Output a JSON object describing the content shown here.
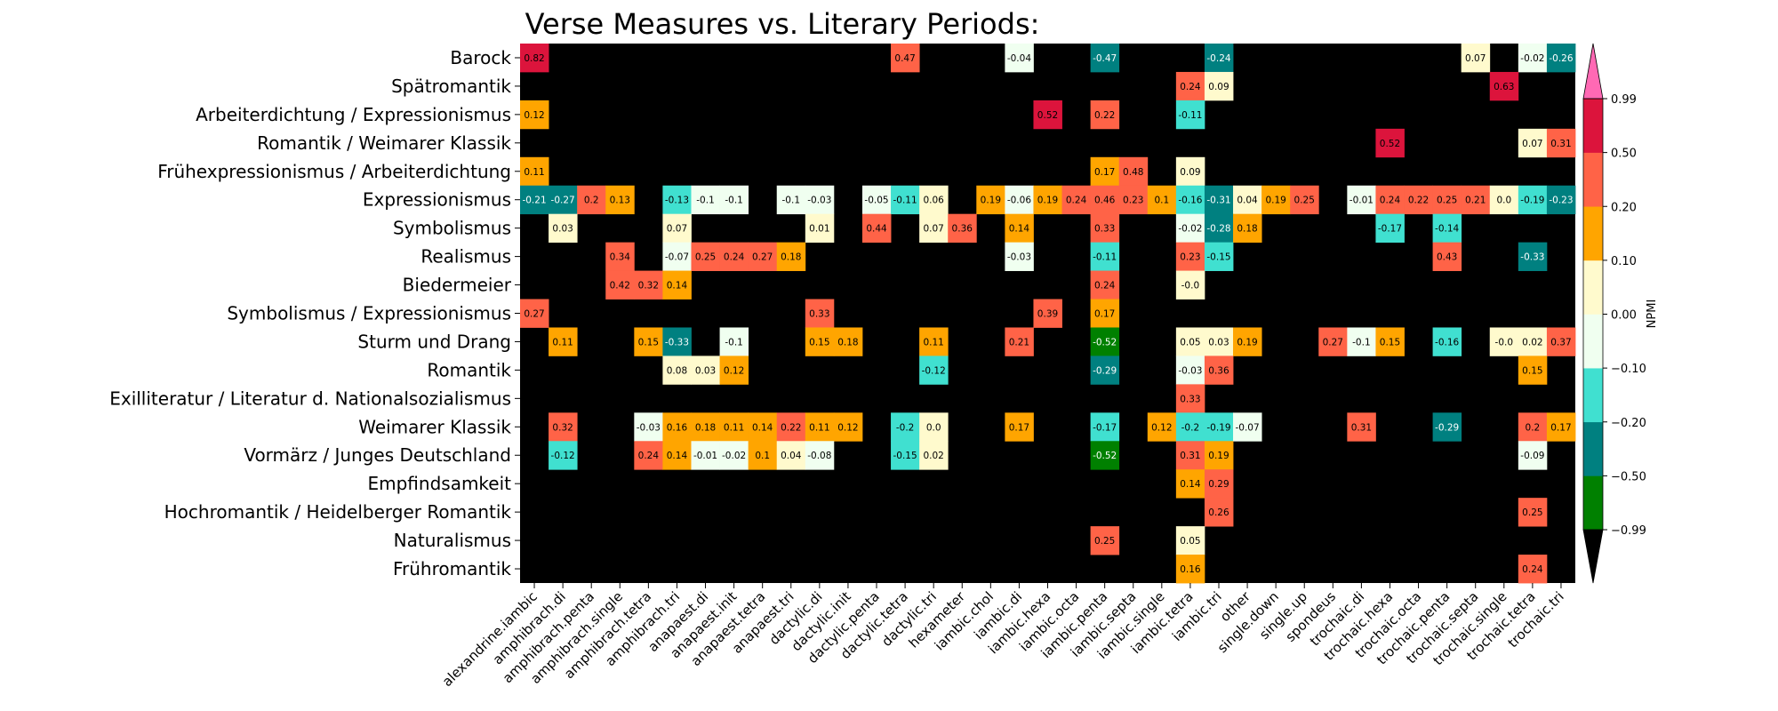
{
  "chart_data": {
    "type": "heatmap",
    "title": "Verse Measures vs. Literary Periods: NPMI",
    "rows": [
      "Barock",
      "Spätromantik",
      "Arbeiterdichtung / Expressionismus",
      "Romantik / Weimarer Klassik",
      "Frühexpressionismus / Arbeiterdichtung",
      "Expressionismus",
      "Symbolismus",
      "Realismus",
      "Biedermeier",
      "Symbolismus / Expressionismus",
      "Sturm und Drang",
      "Romantik",
      "Exilliteratur / Literatur d. Nationalsozialismus",
      "Weimarer Klassik",
      "Vormärz / Junges Deutschland",
      "Empfindsamkeit",
      "Hochromantik / Heidelberger Romantik",
      "Naturalismus",
      "Frühromantik"
    ],
    "columns": [
      "alexandrine.iambic",
      "amphibrach.di",
      "amphibrach.penta",
      "amphibrach.single",
      "amphibrach.tetra",
      "amphibrach.tri",
      "anapaest.di",
      "anapaest.init",
      "anapaest.tetra",
      "anapaest.tri",
      "dactylic.di",
      "dactylic.init",
      "dactylic.penta",
      "dactylic.tetra",
      "dactylic.tri",
      "hexameter",
      "iambic.chol",
      "iambic.di",
      "iambic.hexa",
      "iambic.octa",
      "iambic.penta",
      "iambic.septa",
      "iambic.single",
      "iambic.tetra",
      "iambic.tri",
      "other",
      "single.down",
      "single.up",
      "spondeus",
      "trochaic.di",
      "trochaic.hexa",
      "trochaic.octa",
      "trochaic.penta",
      "trochaic.septa",
      "trochaic.single",
      "trochaic.tetra",
      "trochaic.tri"
    ],
    "cells": [
      {
        "r": 0,
        "c": 0,
        "v": 0.82,
        "label": "0.82"
      },
      {
        "r": 0,
        "c": 13,
        "v": 0.47,
        "label": "0.47"
      },
      {
        "r": 0,
        "c": 17,
        "v": -0.04,
        "label": "-0.04"
      },
      {
        "r": 0,
        "c": 20,
        "v": -0.47,
        "label": "-0.47"
      },
      {
        "r": 0,
        "c": 24,
        "v": -0.24,
        "label": "-0.24"
      },
      {
        "r": 0,
        "c": 33,
        "v": 0.07,
        "label": "0.07"
      },
      {
        "r": 0,
        "c": 35,
        "v": -0.02,
        "label": "-0.02"
      },
      {
        "r": 0,
        "c": 36,
        "v": -0.26,
        "label": "-0.26"
      },
      {
        "r": 1,
        "c": 23,
        "v": 0.24,
        "label": "0.24"
      },
      {
        "r": 1,
        "c": 24,
        "v": 0.09,
        "label": "0.09"
      },
      {
        "r": 1,
        "c": 34,
        "v": 0.63,
        "label": "0.63"
      },
      {
        "r": 2,
        "c": 0,
        "v": 0.12,
        "label": "0.12"
      },
      {
        "r": 2,
        "c": 18,
        "v": 0.52,
        "label": "0.52"
      },
      {
        "r": 2,
        "c": 20,
        "v": 0.22,
        "label": "0.22"
      },
      {
        "r": 2,
        "c": 23,
        "v": -0.11,
        "label": "-0.11"
      },
      {
        "r": 3,
        "c": 30,
        "v": 0.52,
        "label": "0.52"
      },
      {
        "r": 3,
        "c": 35,
        "v": 0.07,
        "label": "0.07"
      },
      {
        "r": 3,
        "c": 36,
        "v": 0.31,
        "label": "0.31"
      },
      {
        "r": 4,
        "c": 0,
        "v": 0.11,
        "label": "0.11"
      },
      {
        "r": 4,
        "c": 20,
        "v": 0.17,
        "label": "0.17"
      },
      {
        "r": 4,
        "c": 21,
        "v": 0.48,
        "label": "0.48"
      },
      {
        "r": 4,
        "c": 23,
        "v": 0.09,
        "label": "0.09"
      },
      {
        "r": 5,
        "c": 0,
        "v": -0.21,
        "label": "-0.21"
      },
      {
        "r": 5,
        "c": 1,
        "v": -0.27,
        "label": "-0.27"
      },
      {
        "r": 5,
        "c": 2,
        "v": 0.2,
        "label": "0.2"
      },
      {
        "r": 5,
        "c": 3,
        "v": 0.13,
        "label": "0.13"
      },
      {
        "r": 5,
        "c": 5,
        "v": -0.13,
        "label": "-0.13"
      },
      {
        "r": 5,
        "c": 6,
        "v": -0.1,
        "label": "-0.1"
      },
      {
        "r": 5,
        "c": 7,
        "v": -0.1,
        "label": "-0.1"
      },
      {
        "r": 5,
        "c": 9,
        "v": -0.1,
        "label": "-0.1"
      },
      {
        "r": 5,
        "c": 10,
        "v": -0.03,
        "label": "-0.03"
      },
      {
        "r": 5,
        "c": 12,
        "v": -0.05,
        "label": "-0.05"
      },
      {
        "r": 5,
        "c": 13,
        "v": -0.11,
        "label": "-0.11"
      },
      {
        "r": 5,
        "c": 14,
        "v": 0.06,
        "label": "0.06"
      },
      {
        "r": 5,
        "c": 16,
        "v": 0.19,
        "label": "0.19"
      },
      {
        "r": 5,
        "c": 17,
        "v": -0.06,
        "label": "-0.06"
      },
      {
        "r": 5,
        "c": 18,
        "v": 0.19,
        "label": "0.19"
      },
      {
        "r": 5,
        "c": 19,
        "v": 0.24,
        "label": "0.24"
      },
      {
        "r": 5,
        "c": 20,
        "v": 0.46,
        "label": "0.46"
      },
      {
        "r": 5,
        "c": 21,
        "v": 0.23,
        "label": "0.23"
      },
      {
        "r": 5,
        "c": 22,
        "v": 0.1,
        "label": "0.1"
      },
      {
        "r": 5,
        "c": 23,
        "v": -0.16,
        "label": "-0.16"
      },
      {
        "r": 5,
        "c": 24,
        "v": -0.31,
        "label": "-0.31"
      },
      {
        "r": 5,
        "c": 25,
        "v": 0.04,
        "label": "0.04"
      },
      {
        "r": 5,
        "c": 26,
        "v": 0.19,
        "label": "0.19"
      },
      {
        "r": 5,
        "c": 27,
        "v": 0.25,
        "label": "0.25"
      },
      {
        "r": 5,
        "c": 29,
        "v": -0.01,
        "label": "-0.01"
      },
      {
        "r": 5,
        "c": 30,
        "v": 0.24,
        "label": "0.24"
      },
      {
        "r": 5,
        "c": 31,
        "v": 0.22,
        "label": "0.22"
      },
      {
        "r": 5,
        "c": 32,
        "v": 0.25,
        "label": "0.25"
      },
      {
        "r": 5,
        "c": 33,
        "v": 0.21,
        "label": "0.21"
      },
      {
        "r": 5,
        "c": 34,
        "v": 0.0,
        "label": "0.0"
      },
      {
        "r": 5,
        "c": 35,
        "v": -0.19,
        "label": "-0.19"
      },
      {
        "r": 5,
        "c": 36,
        "v": -0.23,
        "label": "-0.23"
      },
      {
        "r": 6,
        "c": 1,
        "v": 0.03,
        "label": "0.03"
      },
      {
        "r": 6,
        "c": 5,
        "v": 0.07,
        "label": "0.07"
      },
      {
        "r": 6,
        "c": 10,
        "v": 0.01,
        "label": "0.01"
      },
      {
        "r": 6,
        "c": 12,
        "v": 0.44,
        "label": "0.44"
      },
      {
        "r": 6,
        "c": 14,
        "v": 0.07,
        "label": "0.07"
      },
      {
        "r": 6,
        "c": 15,
        "v": 0.36,
        "label": "0.36"
      },
      {
        "r": 6,
        "c": 17,
        "v": 0.14,
        "label": "0.14"
      },
      {
        "r": 6,
        "c": 20,
        "v": 0.33,
        "label": "0.33"
      },
      {
        "r": 6,
        "c": 23,
        "v": -0.02,
        "label": "-0.02"
      },
      {
        "r": 6,
        "c": 24,
        "v": -0.28,
        "label": "-0.28"
      },
      {
        "r": 6,
        "c": 25,
        "v": 0.18,
        "label": "0.18"
      },
      {
        "r": 6,
        "c": 30,
        "v": -0.17,
        "label": "-0.17"
      },
      {
        "r": 6,
        "c": 32,
        "v": -0.14,
        "label": "-0.14"
      },
      {
        "r": 7,
        "c": 3,
        "v": 0.34,
        "label": "0.34"
      },
      {
        "r": 7,
        "c": 5,
        "v": -0.07,
        "label": "-0.07"
      },
      {
        "r": 7,
        "c": 6,
        "v": 0.25,
        "label": "0.25"
      },
      {
        "r": 7,
        "c": 7,
        "v": 0.24,
        "label": "0.24"
      },
      {
        "r": 7,
        "c": 8,
        "v": 0.27,
        "label": "0.27"
      },
      {
        "r": 7,
        "c": 9,
        "v": 0.18,
        "label": "0.18"
      },
      {
        "r": 7,
        "c": 17,
        "v": -0.03,
        "label": "-0.03"
      },
      {
        "r": 7,
        "c": 20,
        "v": -0.11,
        "label": "-0.11"
      },
      {
        "r": 7,
        "c": 23,
        "v": 0.23,
        "label": "0.23"
      },
      {
        "r": 7,
        "c": 24,
        "v": -0.15,
        "label": "-0.15"
      },
      {
        "r": 7,
        "c": 32,
        "v": 0.43,
        "label": "0.43"
      },
      {
        "r": 7,
        "c": 35,
        "v": -0.33,
        "label": "-0.33"
      },
      {
        "r": 8,
        "c": 3,
        "v": 0.42,
        "label": "0.42"
      },
      {
        "r": 8,
        "c": 4,
        "v": 0.32,
        "label": "0.32"
      },
      {
        "r": 8,
        "c": 5,
        "v": 0.14,
        "label": "0.14"
      },
      {
        "r": 8,
        "c": 20,
        "v": 0.24,
        "label": "0.24"
      },
      {
        "r": 8,
        "c": 23,
        "v": -0.0,
        "label": "-0.0"
      },
      {
        "r": 9,
        "c": 0,
        "v": 0.27,
        "label": "0.27"
      },
      {
        "r": 9,
        "c": 10,
        "v": 0.33,
        "label": "0.33"
      },
      {
        "r": 9,
        "c": 18,
        "v": 0.39,
        "label": "0.39"
      },
      {
        "r": 9,
        "c": 20,
        "v": 0.17,
        "label": "0.17"
      },
      {
        "r": 10,
        "c": 1,
        "v": 0.11,
        "label": "0.11"
      },
      {
        "r": 10,
        "c": 4,
        "v": 0.15,
        "label": "0.15"
      },
      {
        "r": 10,
        "c": 5,
        "v": -0.33,
        "label": "-0.33"
      },
      {
        "r": 10,
        "c": 7,
        "v": -0.1,
        "label": "-0.1"
      },
      {
        "r": 10,
        "c": 10,
        "v": 0.15,
        "label": "0.15"
      },
      {
        "r": 10,
        "c": 11,
        "v": 0.18,
        "label": "0.18"
      },
      {
        "r": 10,
        "c": 14,
        "v": 0.11,
        "label": "0.11"
      },
      {
        "r": 10,
        "c": 17,
        "v": 0.21,
        "label": "0.21"
      },
      {
        "r": 10,
        "c": 20,
        "v": -0.52,
        "label": "-0.52"
      },
      {
        "r": 10,
        "c": 23,
        "v": 0.05,
        "label": "0.05"
      },
      {
        "r": 10,
        "c": 24,
        "v": 0.03,
        "label": "0.03"
      },
      {
        "r": 10,
        "c": 25,
        "v": 0.19,
        "label": "0.19"
      },
      {
        "r": 10,
        "c": 28,
        "v": 0.27,
        "label": "0.27"
      },
      {
        "r": 10,
        "c": 29,
        "v": -0.1,
        "label": "-0.1"
      },
      {
        "r": 10,
        "c": 30,
        "v": 0.15,
        "label": "0.15"
      },
      {
        "r": 10,
        "c": 32,
        "v": -0.16,
        "label": "-0.16"
      },
      {
        "r": 10,
        "c": 34,
        "v": -0.0,
        "label": "-0.0"
      },
      {
        "r": 10,
        "c": 35,
        "v": 0.02,
        "label": "0.02"
      },
      {
        "r": 10,
        "c": 36,
        "v": 0.37,
        "label": "0.37"
      },
      {
        "r": 11,
        "c": 5,
        "v": 0.08,
        "label": "0.08"
      },
      {
        "r": 11,
        "c": 6,
        "v": 0.03,
        "label": "0.03"
      },
      {
        "r": 11,
        "c": 7,
        "v": 0.12,
        "label": "0.12"
      },
      {
        "r": 11,
        "c": 14,
        "v": -0.12,
        "label": "-0.12"
      },
      {
        "r": 11,
        "c": 20,
        "v": -0.29,
        "label": "-0.29"
      },
      {
        "r": 11,
        "c": 23,
        "v": -0.03,
        "label": "-0.03"
      },
      {
        "r": 11,
        "c": 24,
        "v": 0.36,
        "label": "0.36"
      },
      {
        "r": 11,
        "c": 35,
        "v": 0.15,
        "label": "0.15"
      },
      {
        "r": 12,
        "c": 23,
        "v": 0.33,
        "label": "0.33"
      },
      {
        "r": 13,
        "c": 1,
        "v": 0.32,
        "label": "0.32"
      },
      {
        "r": 13,
        "c": 4,
        "v": -0.03,
        "label": "-0.03"
      },
      {
        "r": 13,
        "c": 5,
        "v": 0.16,
        "label": "0.16"
      },
      {
        "r": 13,
        "c": 6,
        "v": 0.18,
        "label": "0.18"
      },
      {
        "r": 13,
        "c": 7,
        "v": 0.11,
        "label": "0.11"
      },
      {
        "r": 13,
        "c": 8,
        "v": 0.14,
        "label": "0.14"
      },
      {
        "r": 13,
        "c": 9,
        "v": 0.22,
        "label": "0.22"
      },
      {
        "r": 13,
        "c": 10,
        "v": 0.11,
        "label": "0.11"
      },
      {
        "r": 13,
        "c": 11,
        "v": 0.12,
        "label": "0.12"
      },
      {
        "r": 13,
        "c": 13,
        "v": -0.2,
        "label": "-0.2"
      },
      {
        "r": 13,
        "c": 14,
        "v": 0.0,
        "label": "0.0"
      },
      {
        "r": 13,
        "c": 17,
        "v": 0.17,
        "label": "0.17"
      },
      {
        "r": 13,
        "c": 20,
        "v": -0.17,
        "label": "-0.17"
      },
      {
        "r": 13,
        "c": 22,
        "v": 0.12,
        "label": "0.12"
      },
      {
        "r": 13,
        "c": 23,
        "v": -0.2,
        "label": "-0.2"
      },
      {
        "r": 13,
        "c": 24,
        "v": -0.19,
        "label": "-0.19"
      },
      {
        "r": 13,
        "c": 25,
        "v": -0.07,
        "label": "-0.07"
      },
      {
        "r": 13,
        "c": 29,
        "v": 0.31,
        "label": "0.31"
      },
      {
        "r": 13,
        "c": 32,
        "v": -0.29,
        "label": "-0.29"
      },
      {
        "r": 13,
        "c": 35,
        "v": 0.2,
        "label": "0.2"
      },
      {
        "r": 13,
        "c": 36,
        "v": 0.17,
        "label": "0.17"
      },
      {
        "r": 14,
        "c": 1,
        "v": -0.12,
        "label": "-0.12"
      },
      {
        "r": 14,
        "c": 4,
        "v": 0.24,
        "label": "0.24"
      },
      {
        "r": 14,
        "c": 5,
        "v": 0.14,
        "label": "0.14"
      },
      {
        "r": 14,
        "c": 6,
        "v": -0.01,
        "label": "-0.01"
      },
      {
        "r": 14,
        "c": 7,
        "v": -0.02,
        "label": "-0.02"
      },
      {
        "r": 14,
        "c": 8,
        "v": 0.1,
        "label": "0.1"
      },
      {
        "r": 14,
        "c": 9,
        "v": 0.04,
        "label": "0.04"
      },
      {
        "r": 14,
        "c": 10,
        "v": -0.08,
        "label": "-0.08"
      },
      {
        "r": 14,
        "c": 13,
        "v": -0.15,
        "label": "-0.15"
      },
      {
        "r": 14,
        "c": 14,
        "v": 0.02,
        "label": "0.02"
      },
      {
        "r": 14,
        "c": 20,
        "v": -0.52,
        "label": "-0.52"
      },
      {
        "r": 14,
        "c": 23,
        "v": 0.31,
        "label": "0.31"
      },
      {
        "r": 14,
        "c": 24,
        "v": 0.19,
        "label": "0.19"
      },
      {
        "r": 14,
        "c": 35,
        "v": -0.09,
        "label": "-0.09"
      },
      {
        "r": 15,
        "c": 23,
        "v": 0.14,
        "label": "0.14"
      },
      {
        "r": 15,
        "c": 24,
        "v": 0.29,
        "label": "0.29"
      },
      {
        "r": 16,
        "c": 24,
        "v": 0.26,
        "label": "0.26"
      },
      {
        "r": 16,
        "c": 35,
        "v": 0.25,
        "label": "0.25"
      },
      {
        "r": 17,
        "c": 20,
        "v": 0.25,
        "label": "0.25"
      },
      {
        "r": 17,
        "c": 23,
        "v": 0.05,
        "label": "0.05"
      },
      {
        "r": 18,
        "c": 23,
        "v": 0.16,
        "label": "0.16"
      },
      {
        "r": 18,
        "c": 35,
        "v": 0.24,
        "label": "0.24"
      }
    ],
    "colorbar": {
      "label": "NPMI",
      "boundaries": [
        -0.99,
        -0.5,
        -0.2,
        -0.1,
        0.0,
        0.1,
        0.2,
        0.5,
        0.99
      ],
      "tick_labels": [
        "−0.99",
        "−0.50",
        "−0.20",
        "−0.10",
        "0.00",
        "0.10",
        "0.20",
        "0.50",
        "0.99"
      ],
      "colors": [
        "#008000",
        "#008080",
        "#40e0d0",
        "#f0fff0",
        "#fffacd",
        "#ffa500",
        "#ff6347",
        "#dc143c"
      ],
      "under_color": "#000000",
      "over_color": "#ff69b4"
    },
    "background_color": "#000000"
  }
}
